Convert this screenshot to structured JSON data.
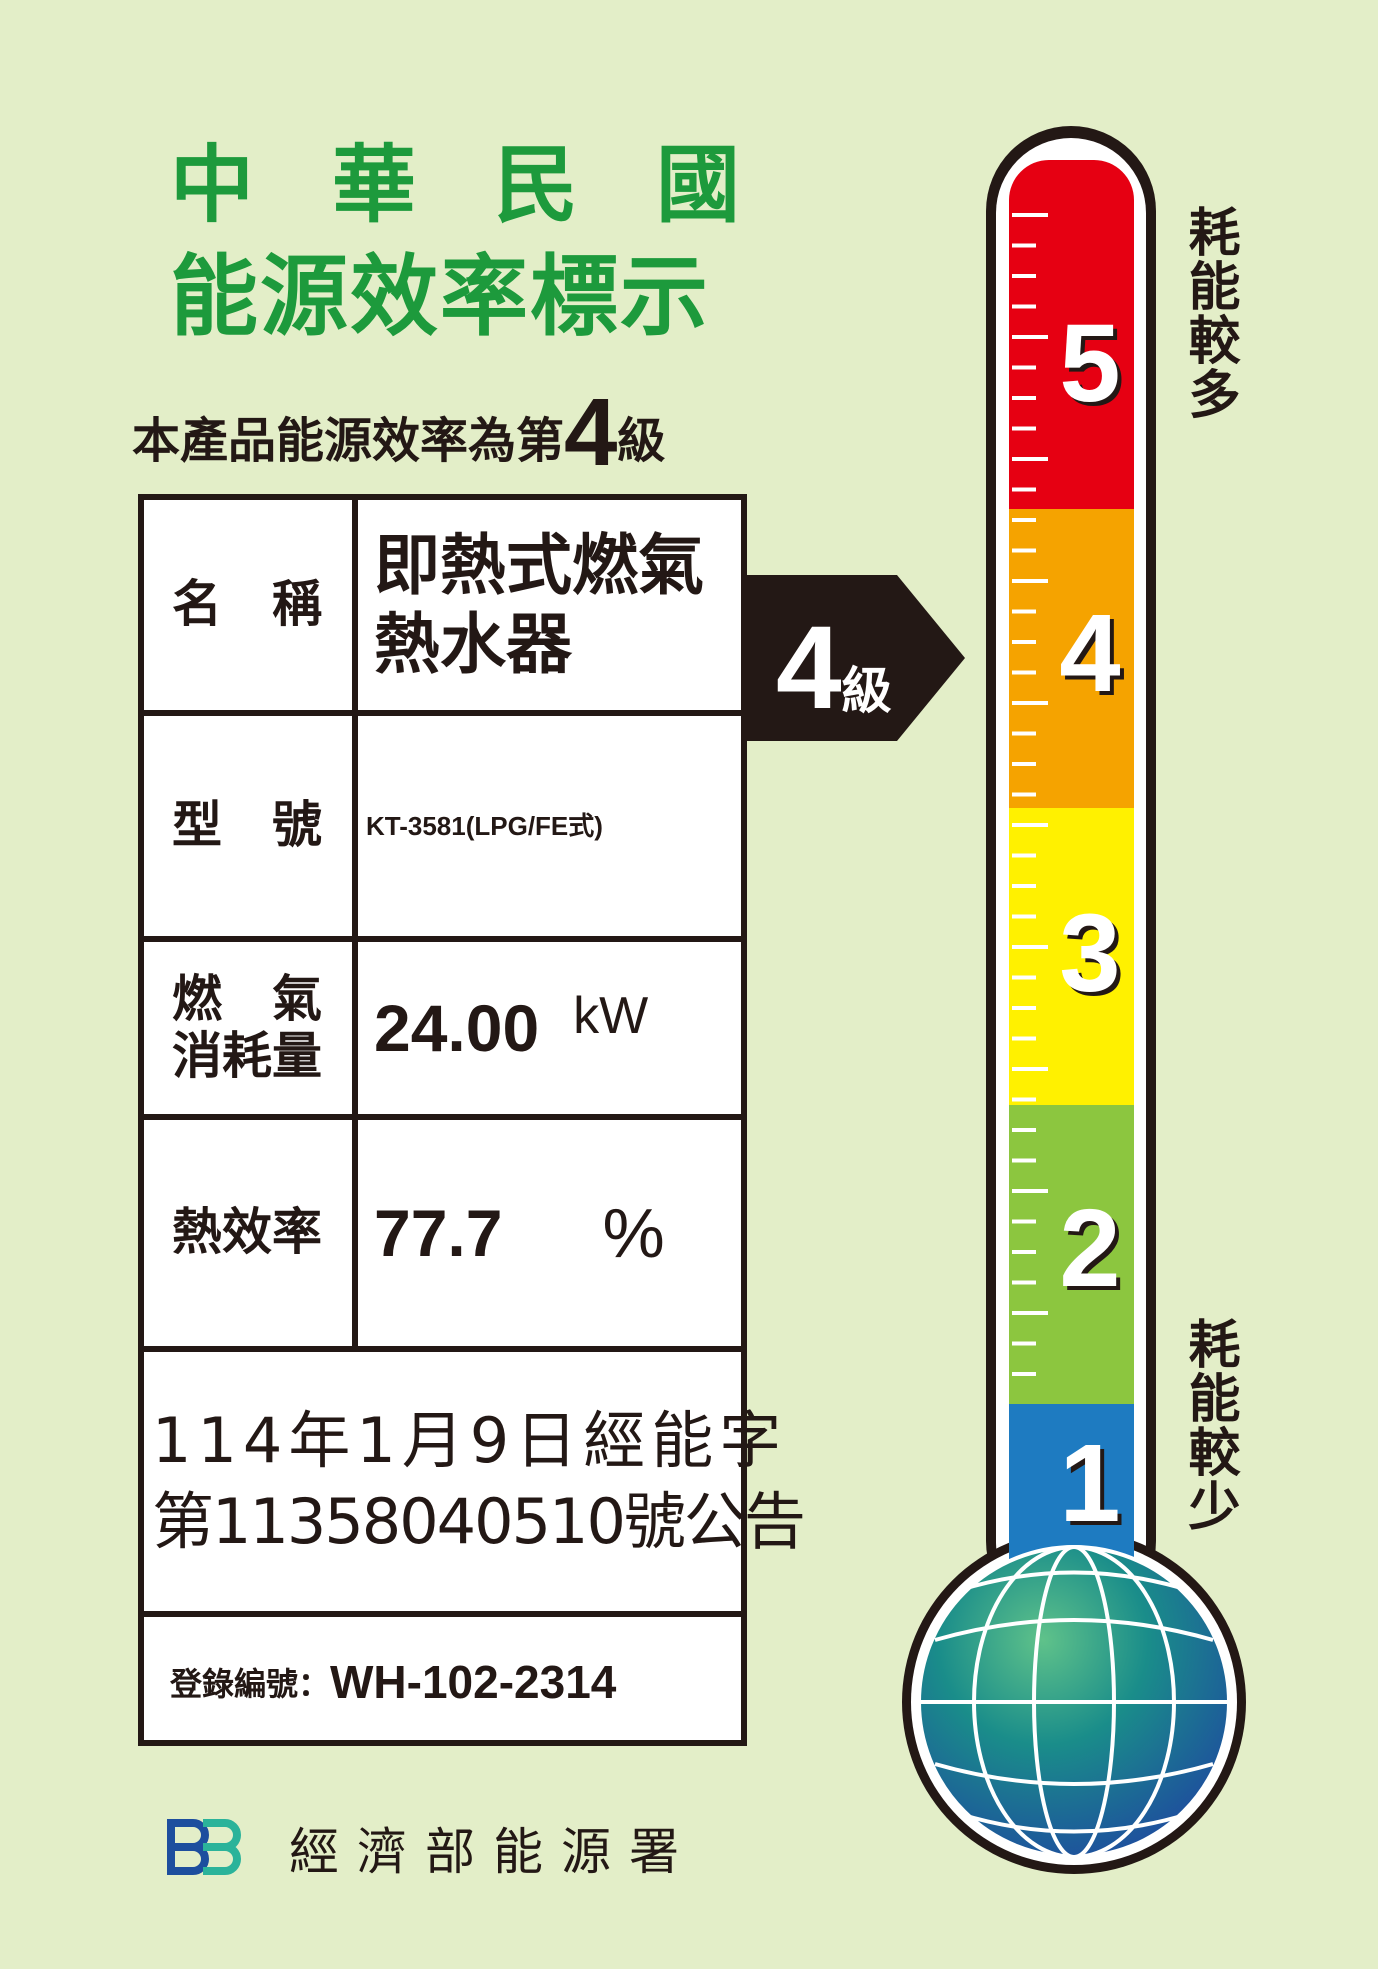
{
  "header": {
    "title_line1": "中華民國",
    "title_line2": "能源效率標示",
    "grade_prefix": "本產品能源效率為第",
    "grade_value": "4",
    "grade_suffix": "級"
  },
  "table": {
    "name_label": "名　稱",
    "name_value": "即熱式燃氣熱水器",
    "model_label": "型　號",
    "model_value": "KT-3581(LPG/FE式)",
    "gas_label_line1": "燃　氣",
    "gas_label_line2": "消耗量",
    "gas_value": "24.00",
    "gas_unit": "kW",
    "efficiency_label": "熱效率",
    "efficiency_value": "77.7",
    "efficiency_unit": "%",
    "announcement_line1": "114年1月9日經能字",
    "announcement_line2": "第11358040510號公告",
    "registration_label": "登錄編號：",
    "registration_value": "WH-102-2314"
  },
  "badge": {
    "grade": "4",
    "suffix": "級"
  },
  "thermometer": {
    "levels": [
      "5",
      "4",
      "3",
      "2",
      "1"
    ],
    "colors": [
      "#e60012",
      "#f5a300",
      "#fff100",
      "#8cc63f",
      "#1e7bc1"
    ],
    "current_level": 4,
    "top_label": "耗能較多",
    "bottom_label": "耗能較少"
  },
  "footer": {
    "agency": "經濟部能源署",
    "logo_icon": "energy-administration-logo"
  },
  "colors": {
    "background": "#e3eec8",
    "title_green": "#1d9a3c"
  }
}
